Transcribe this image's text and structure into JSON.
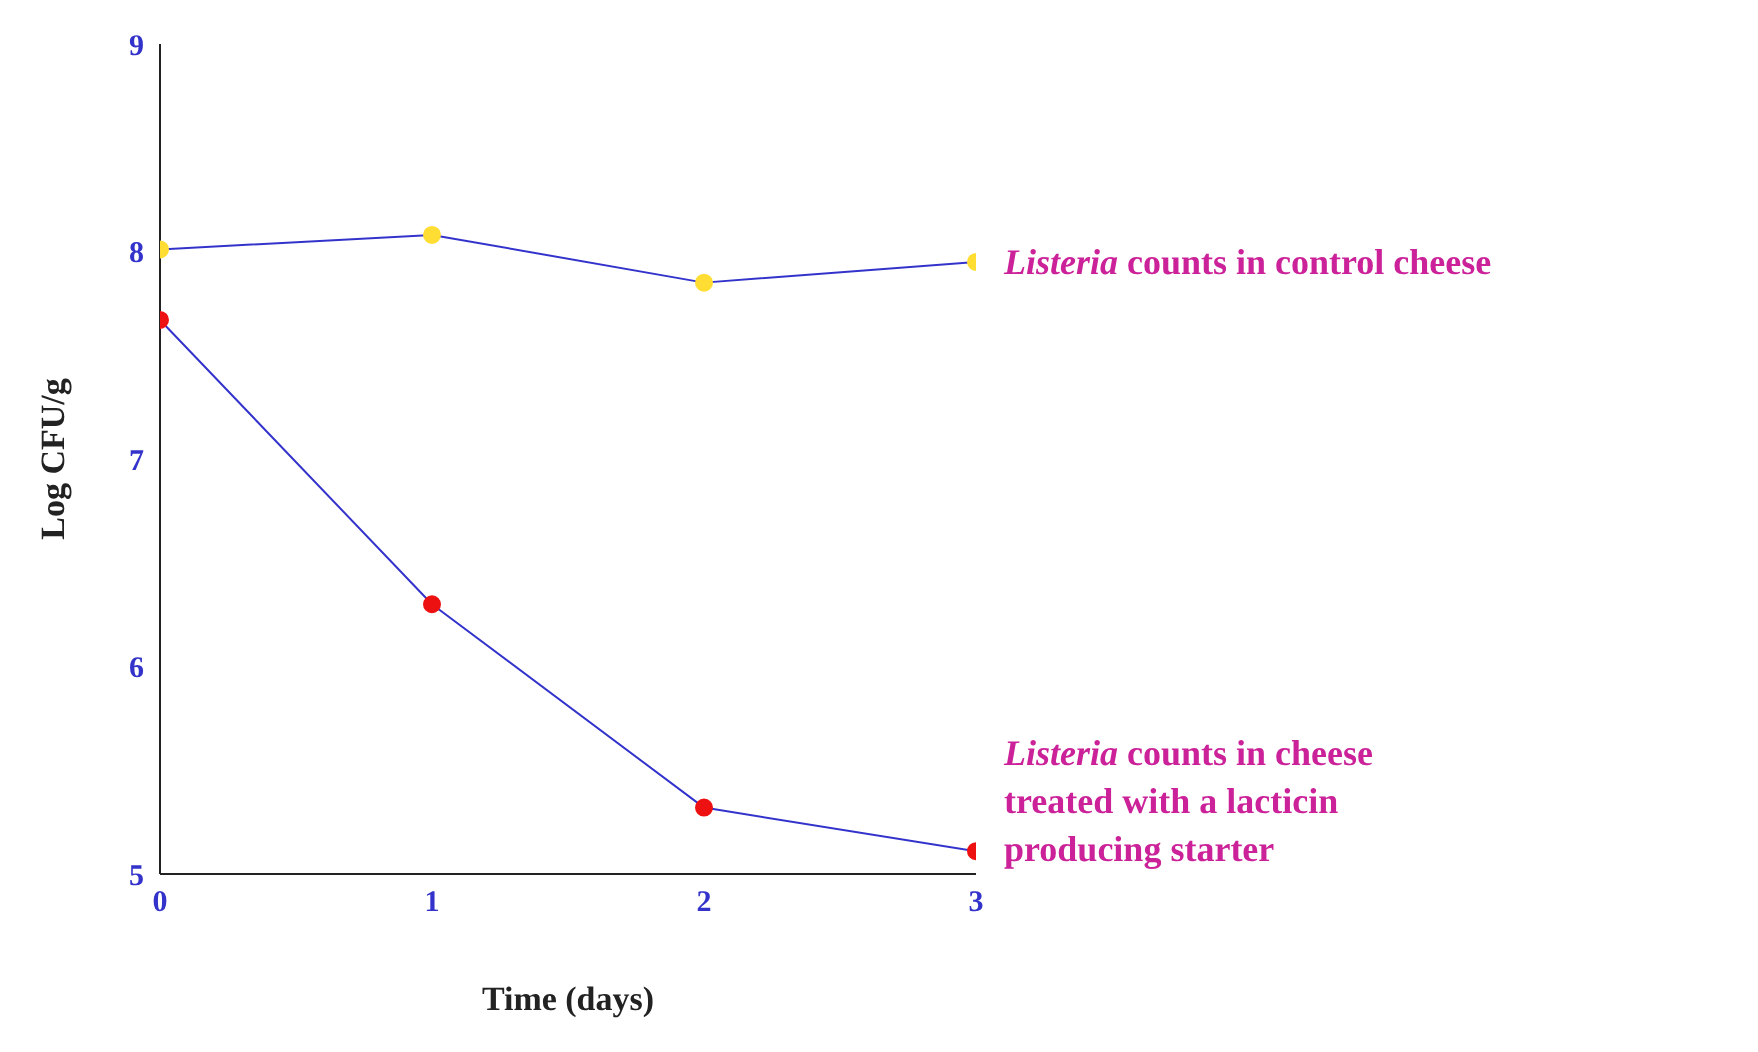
{
  "chart_data": {
    "type": "line",
    "xlabel": "Time (days)",
    "ylabel": "Log CFU/g",
    "x": [
      0,
      1,
      2,
      3
    ],
    "xlim": [
      0,
      3
    ],
    "xticks": [
      0,
      1,
      2,
      3
    ],
    "ylim": [
      5,
      9
    ],
    "yticks": [
      5,
      6,
      7,
      8,
      9
    ],
    "grid": false,
    "legend": false,
    "marker": "circle",
    "line_style": "solid",
    "series": [
      {
        "name": "Listeria counts in control cheese",
        "color": "#3333cc",
        "colors": [
          "#ffdd33",
          "#ffdd33",
          "#ffdd33",
          "#ffdd33"
        ],
        "values": [
          8.01,
          8.08,
          7.85,
          7.95
        ]
      },
      {
        "name": "Listeria counts in cheese treated with a lacticin producing starter",
        "color": "#3333cc",
        "colors": [
          "#ee1111",
          "#ee1111",
          "#ee1111",
          "#ee1111"
        ],
        "values": [
          7.67,
          6.3,
          5.32,
          5.11
        ]
      }
    ]
  }
}
